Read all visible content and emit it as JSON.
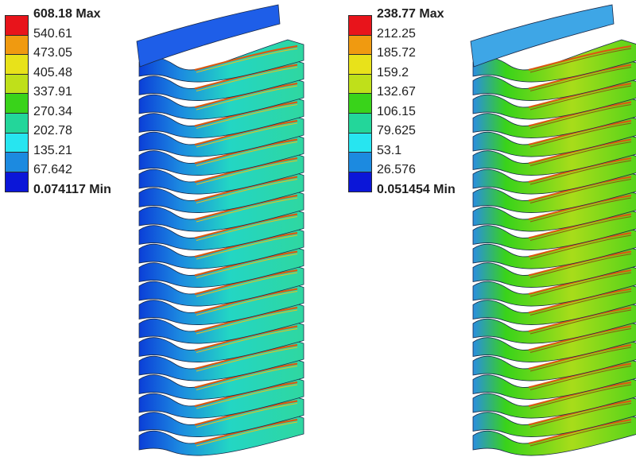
{
  "colors": [
    "#e8141b",
    "#f09a10",
    "#e8e21a",
    "#bfe01a",
    "#39d31a",
    "#23d69a",
    "#27e5f0",
    "#1c8ae0",
    "#0b16d8"
  ],
  "left_legend": {
    "max": "608.18 Max",
    "values": [
      "540.61",
      "473.05",
      "405.48",
      "337.91",
      "270.34",
      "202.78",
      "135.21",
      "67.642"
    ],
    "min": "0.074117 Min"
  },
  "right_legend": {
    "max": "238.77 Max",
    "values": [
      "212.25",
      "185.72",
      "159.2",
      "132.67",
      "106.15",
      "79.625",
      "53.1",
      "26.576"
    ],
    "min": "0.051454 Min"
  }
}
